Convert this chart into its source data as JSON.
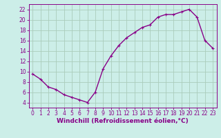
{
  "x": [
    0,
    1,
    2,
    3,
    4,
    5,
    6,
    7,
    8,
    9,
    10,
    11,
    12,
    13,
    14,
    15,
    16,
    17,
    18,
    19,
    20,
    21,
    22,
    23
  ],
  "y": [
    9.5,
    8.5,
    7.0,
    6.5,
    5.5,
    5.0,
    4.5,
    4.0,
    6.0,
    10.5,
    13.0,
    15.0,
    16.5,
    17.5,
    18.5,
    19.0,
    20.5,
    21.0,
    21.0,
    21.5,
    22.0,
    20.5,
    16.0,
    14.5
  ],
  "line_color": "#880088",
  "marker": "+",
  "bg_color": "#cceee8",
  "grid_color": "#aaccbb",
  "xlabel": "Windchill (Refroidissement éolien,°C)",
  "xlabel_color": "#880088",
  "ylim": [
    3,
    23
  ],
  "xlim": [
    -0.5,
    23.5
  ],
  "yticks": [
    4,
    6,
    8,
    10,
    12,
    14,
    16,
    18,
    20,
    22
  ],
  "xtick_labels": [
    "0",
    "1",
    "2",
    "3",
    "4",
    "5",
    "6",
    "7",
    "8",
    "9",
    "10",
    "11",
    "12",
    "13",
    "14",
    "15",
    "16",
    "17",
    "18",
    "19",
    "20",
    "21",
    "22",
    "23"
  ],
  "tick_fontsize": 5.5,
  "xlabel_fontsize": 6.5,
  "line_width": 1.0,
  "marker_size": 3.5,
  "marker_edge_width": 0.8
}
